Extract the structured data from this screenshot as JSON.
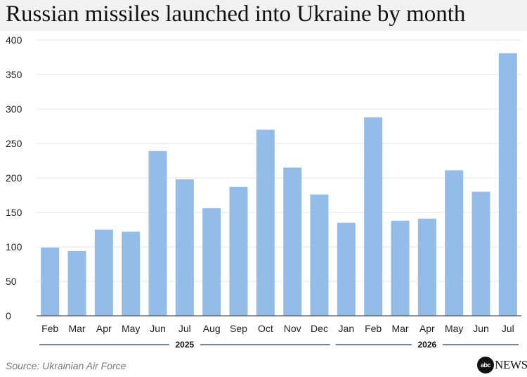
{
  "header": {
    "title": "Russian missiles launched into Ukraine by month"
  },
  "footer": {
    "source": "Source: Ukrainian Air Force"
  },
  "logo": {
    "name": "abc-news-logo",
    "text": "abcNEWS"
  },
  "colors": {
    "bar": "#93bde8",
    "grid": "#e4e4e4",
    "axis": "#555555",
    "year_line": "#1f3e73"
  },
  "chart_data": {
    "type": "bar",
    "categories": [
      "Feb",
      "Mar",
      "Apr",
      "May",
      "Jun",
      "Jul",
      "Aug",
      "Sep",
      "Oct",
      "Nov",
      "Dec",
      "Jan",
      "Feb",
      "Mar",
      "Apr",
      "May",
      "Jun",
      "Jul"
    ],
    "values": [
      99,
      94,
      125,
      122,
      239,
      198,
      156,
      187,
      270,
      215,
      176,
      135,
      288,
      138,
      141,
      211,
      180,
      381
    ],
    "groups": [
      {
        "label": "2025",
        "categories": [
          "Feb",
          "Mar",
          "Apr",
          "May",
          "Jun",
          "Jul",
          "Aug",
          "Sep",
          "Oct",
          "Nov",
          "Dec"
        ]
      },
      {
        "label": "2026",
        "categories": [
          "Jan",
          "Feb",
          "Mar",
          "Apr",
          "May",
          "Jun",
          "Jul"
        ]
      }
    ],
    "yticks": [
      0,
      50,
      100,
      150,
      200,
      250,
      300,
      350,
      400
    ],
    "ylim": [
      0,
      400
    ],
    "title": "Russian missiles launched into Ukraine by month",
    "xlabel": "",
    "ylabel": "",
    "grid": true,
    "legend": "none"
  }
}
